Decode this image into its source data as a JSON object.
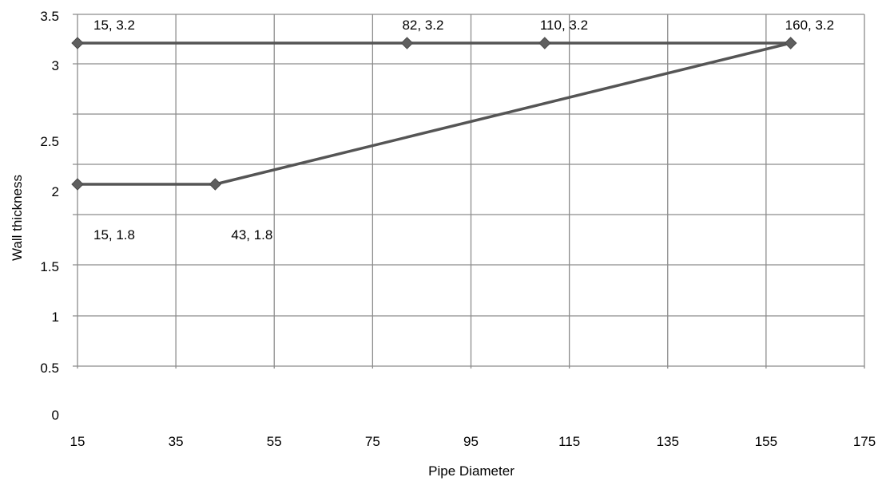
{
  "chart_data": {
    "type": "line",
    "title": "",
    "xlabel": "Pipe Diameter",
    "ylabel": "Wall thickness",
    "xlim": [
      15,
      175
    ],
    "ylim": [
      0,
      3.5
    ],
    "x_ticks": [
      15,
      35,
      55,
      75,
      95,
      115,
      135,
      155,
      175
    ],
    "y_ticks": [
      0,
      0.5,
      1,
      1.5,
      2,
      2.5,
      3,
      3.5
    ],
    "grid": true,
    "legend": "none",
    "series": [
      {
        "color": "#555555",
        "points": [
          [
            15,
            3.2
          ],
          [
            82,
            3.2
          ],
          [
            110,
            3.2
          ],
          [
            160,
            3.2
          ]
        ],
        "labels": [
          "15, 3.2",
          "82, 3.2",
          "110, 3.2",
          "160, 3.2"
        ]
      },
      {
        "color": "#555555",
        "points": [
          [
            15,
            1.8
          ],
          [
            43,
            1.8
          ],
          [
            160,
            3.2
          ]
        ],
        "labels": [
          "15, 1.8",
          "43, 1.8",
          ""
        ]
      }
    ]
  }
}
